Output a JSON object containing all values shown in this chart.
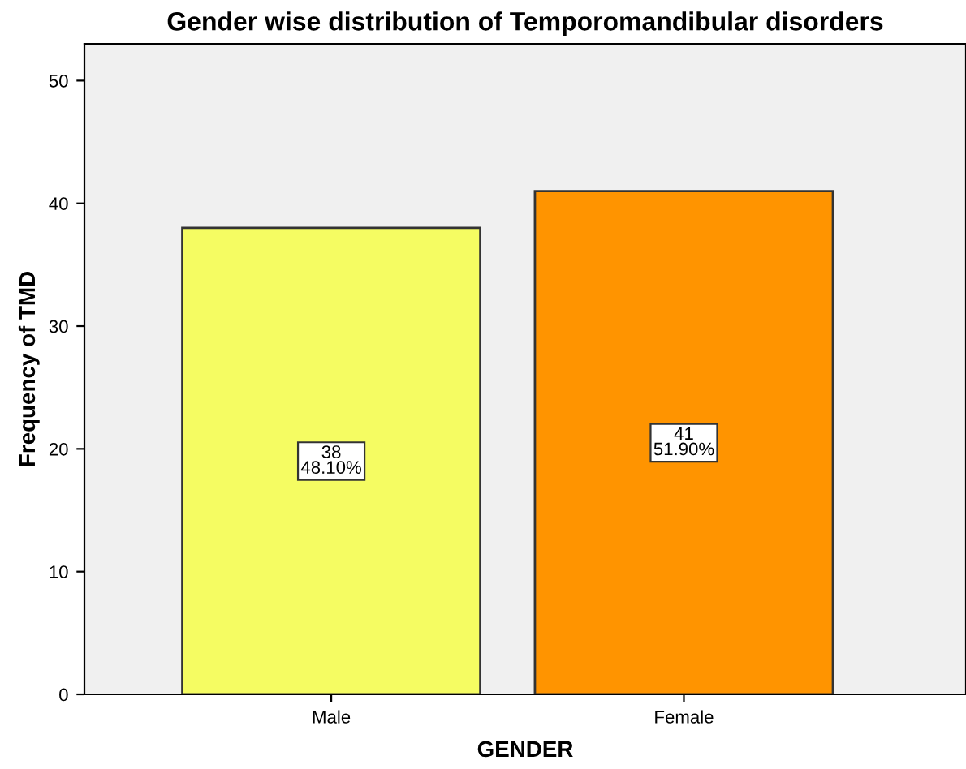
{
  "chart_data": {
    "type": "bar",
    "title": "Gender wise distribution of Temporomandibular disorders",
    "xlabel": "GENDER",
    "ylabel": "Frequency of TMD",
    "categories": [
      "Male",
      "Female"
    ],
    "values": [
      38,
      41
    ],
    "colors": [
      "#f5fc62",
      "#ff9400"
    ],
    "value_labels": [
      "38\n48.10%",
      "41\n51.90%"
    ],
    "ylim": [
      0,
      53
    ],
    "yticks": [
      0,
      10,
      20,
      30,
      40,
      50
    ],
    "grid": false,
    "legend": false
  }
}
